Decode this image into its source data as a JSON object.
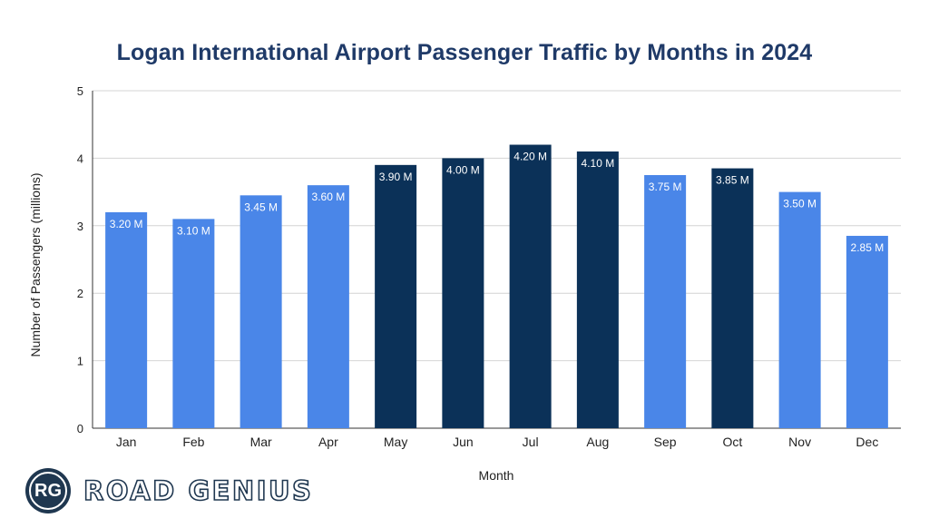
{
  "chart_data": {
    "type": "bar",
    "title": "Logan International Airport Passenger Traffic by Months in 2024",
    "xlabel": "Month",
    "ylabel": "Number of Passengers (millions)",
    "ylim": [
      0,
      5
    ],
    "yticks": [
      "0",
      "1",
      "2",
      "3",
      "4",
      "5"
    ],
    "grid": true,
    "categories": [
      "Jan",
      "Feb",
      "Mar",
      "Apr",
      "May",
      "Jun",
      "Jul",
      "Aug",
      "Sep",
      "Oct",
      "Nov",
      "Dec"
    ],
    "values": [
      3.2,
      3.1,
      3.45,
      3.6,
      3.9,
      4.0,
      4.2,
      4.1,
      3.75,
      3.85,
      3.5,
      2.85
    ],
    "data_labels": [
      "3.20 M",
      "3.10 M",
      "3.45 M",
      "3.60 M",
      "3.90 M",
      "4.00 M",
      "4.20 M",
      "4.10 M",
      "3.75 M",
      "3.85 M",
      "3.50 M",
      "2.85 M"
    ],
    "bar_colors": [
      "#4a86e8",
      "#4a86e8",
      "#4a86e8",
      "#4a86e8",
      "#0b3158",
      "#0b3158",
      "#0b3158",
      "#0b3158",
      "#4a86e8",
      "#0b3158",
      "#4a86e8",
      "#4a86e8"
    ]
  },
  "logo": {
    "badge": "RG",
    "name": "ROAD GENIUS"
  }
}
